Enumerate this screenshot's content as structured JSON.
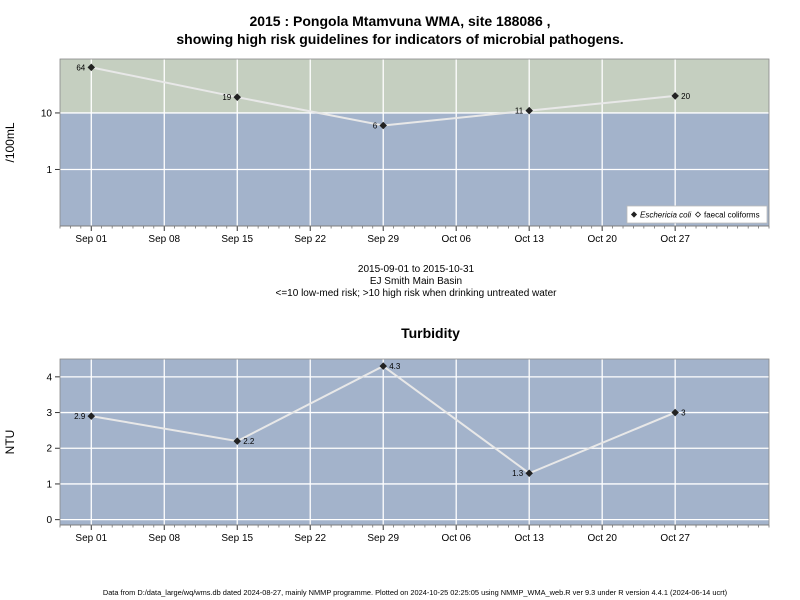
{
  "page": {
    "title_line1": "2015 : Pongola Mtamvuna WMA, site 188086 ,",
    "title_line2": "showing high risk guidelines for indicators of microbial pathogens.",
    "date_range": "2015-09-01 to 2015-10-31",
    "basin": "EJ Smith Main Basin",
    "risk_note": "<=10 low-med risk; >10 high risk when drinking untreated water",
    "footer": "Data from D:/data_large/wq/wms.db dated 2024-08-27, mainly NMMP programme. Plotted on 2024-10-25 02:25:05 using NMMP_WMA_web.R ver 9.3 under R version 4.4.1 (2024-06-14 ucrt)"
  },
  "colors": {
    "panel_blue": "#a3b3cb",
    "high_risk_band": "#c5cfc0",
    "grid": "#ffffff",
    "line": "#e8e8e8",
    "point": "#222222"
  },
  "chart_data": [
    {
      "type": "line",
      "title": "",
      "ylabel": "/100mL",
      "xlabel": "",
      "y_scale": "log",
      "ylim": [
        0.1,
        90
      ],
      "y_ticks": [
        {
          "value": 1,
          "label": "1"
        },
        {
          "value": 10,
          "label": "10"
        }
      ],
      "threshold": 10,
      "xlim": [
        "2015-08-29",
        "2015-11-05"
      ],
      "x_ticks": [
        {
          "date": "2015-09-01",
          "label": "Sep 01"
        },
        {
          "date": "2015-09-08",
          "label": "Sep 08"
        },
        {
          "date": "2015-09-15",
          "label": "Sep 15"
        },
        {
          "date": "2015-09-22",
          "label": "Sep 22"
        },
        {
          "date": "2015-09-29",
          "label": "Sep 29"
        },
        {
          "date": "2015-10-06",
          "label": "Oct 06"
        },
        {
          "date": "2015-10-13",
          "label": "Oct 13"
        },
        {
          "date": "2015-10-20",
          "label": "Oct 20"
        },
        {
          "date": "2015-10-27",
          "label": "Oct 27"
        }
      ],
      "series": [
        {
          "name": "Eschericia coli",
          "points": [
            {
              "date": "2015-09-01",
              "value": 64,
              "label": "64",
              "label_side": "left"
            },
            {
              "date": "2015-09-15",
              "value": 19,
              "label": "19",
              "label_side": "left"
            },
            {
              "date": "2015-09-29",
              "value": 6,
              "label": "6",
              "label_side": "left"
            },
            {
              "date": "2015-10-13",
              "value": 11,
              "label": "11",
              "label_side": "left"
            },
            {
              "date": "2015-10-27",
              "value": 20,
              "label": "20",
              "label_side": "right"
            }
          ]
        }
      ],
      "legend": {
        "position": "bottom-right",
        "entries": [
          {
            "label": "Eschericia coli",
            "marker": "filled-diamond",
            "italic": true
          },
          {
            "label": "faecal coliforms",
            "marker": "open-diamond",
            "italic": false
          }
        ]
      }
    },
    {
      "type": "line",
      "title": "Turbidity",
      "ylabel": "NTU",
      "xlabel": "",
      "y_scale": "linear",
      "ylim": [
        -0.15,
        4.5
      ],
      "y_ticks": [
        {
          "value": 0,
          "label": "0"
        },
        {
          "value": 1,
          "label": "1"
        },
        {
          "value": 2,
          "label": "2"
        },
        {
          "value": 3,
          "label": "3"
        },
        {
          "value": 4,
          "label": "4"
        }
      ],
      "xlim": [
        "2015-08-29",
        "2015-11-05"
      ],
      "x_ticks": [
        {
          "date": "2015-09-01",
          "label": "Sep 01"
        },
        {
          "date": "2015-09-08",
          "label": "Sep 08"
        },
        {
          "date": "2015-09-15",
          "label": "Sep 15"
        },
        {
          "date": "2015-09-22",
          "label": "Sep 22"
        },
        {
          "date": "2015-09-29",
          "label": "Sep 29"
        },
        {
          "date": "2015-10-06",
          "label": "Oct 06"
        },
        {
          "date": "2015-10-13",
          "label": "Oct 13"
        },
        {
          "date": "2015-10-20",
          "label": "Oct 20"
        },
        {
          "date": "2015-10-27",
          "label": "Oct 27"
        }
      ],
      "series": [
        {
          "points": [
            {
              "date": "2015-09-01",
              "value": 2.9,
              "label": "2.9",
              "label_side": "left"
            },
            {
              "date": "2015-09-15",
              "value": 2.2,
              "label": "2.2",
              "label_side": "right"
            },
            {
              "date": "2015-09-29",
              "value": 4.3,
              "label": "4.3",
              "label_side": "right"
            },
            {
              "date": "2015-10-13",
              "value": 1.3,
              "label": "1.3",
              "label_side": "left"
            },
            {
              "date": "2015-10-27",
              "value": 3,
              "label": "3",
              "label_side": "right"
            }
          ]
        }
      ]
    }
  ]
}
